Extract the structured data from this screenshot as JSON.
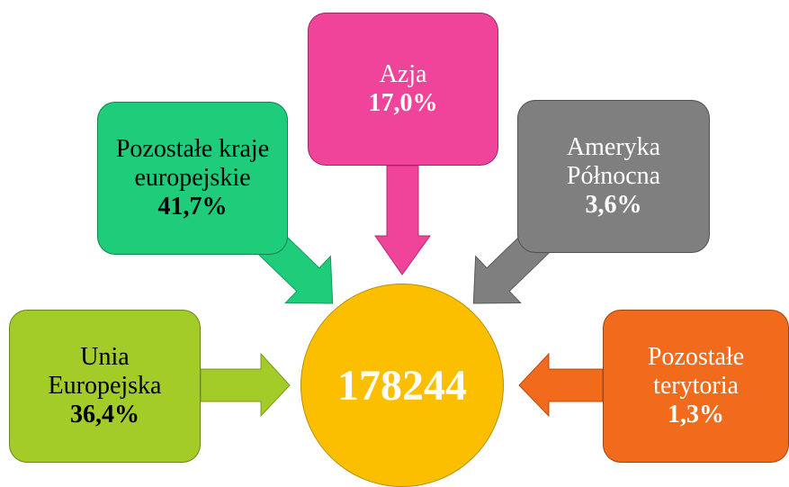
{
  "center": {
    "label": "178244"
  },
  "nodes": [
    {
      "name": "Pozostałe kraje europejskie",
      "value": "41,7%"
    },
    {
      "name": "Azja",
      "value": "17,0%"
    },
    {
      "name": "Ameryka Północna",
      "value": "3,6%"
    },
    {
      "name": "Unia Europejska",
      "value": "36,4%"
    },
    {
      "name": "Pozostałe terytoria",
      "value": "1,3%"
    }
  ]
}
